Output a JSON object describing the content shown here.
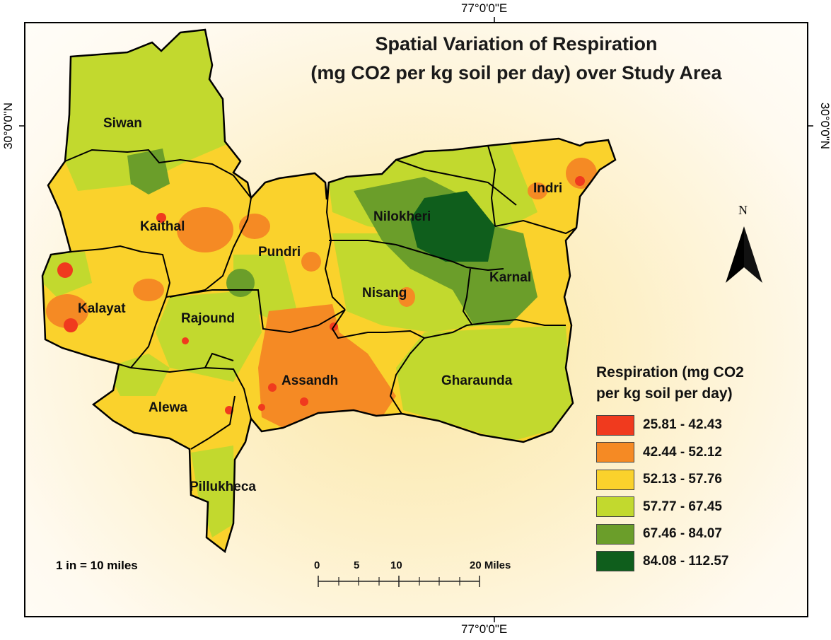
{
  "map": {
    "title_line1": "Spatial Variation of Respiration",
    "title_line2": "(mg CO2 per kg soil per day) over Study Area",
    "graticule": {
      "top_longitude": "77°0'0\"E",
      "bottom_longitude": "77°0'0\"E",
      "left_latitude": "30°0'0\"N",
      "right_latitude": "30°0'0\"N"
    },
    "north_arrow_label": "N",
    "scale_text": "1 in = 10 miles",
    "scale_bar_labels": [
      "0",
      "5",
      "10",
      "20 Miles"
    ],
    "districts": [
      "Siwan",
      "Kaithal",
      "Pundri",
      "Nilokheri",
      "Indri",
      "Kalayat",
      "Rajound",
      "Nisang",
      "Karnal",
      "Assandh",
      "Gharaunda",
      "Alewa",
      "Pillukheca"
    ]
  },
  "legend": {
    "title_line1": "Respiration (mg CO2",
    "title_line2": "per kg soil per day)",
    "classes": [
      {
        "label": "25.81 - 42.43",
        "color": "#f03a1e"
      },
      {
        "label": "42.44 - 52.12",
        "color": "#f58a24"
      },
      {
        "label": "52.13 - 57.76",
        "color": "#fad22c"
      },
      {
        "label": "57.77 - 67.45",
        "color": "#c2d92e"
      },
      {
        "label": "67.46 - 84.07",
        "color": "#6b9e2a"
      },
      {
        "label": "84.08 - 112.57",
        "color": "#0f5e1c"
      }
    ]
  }
}
